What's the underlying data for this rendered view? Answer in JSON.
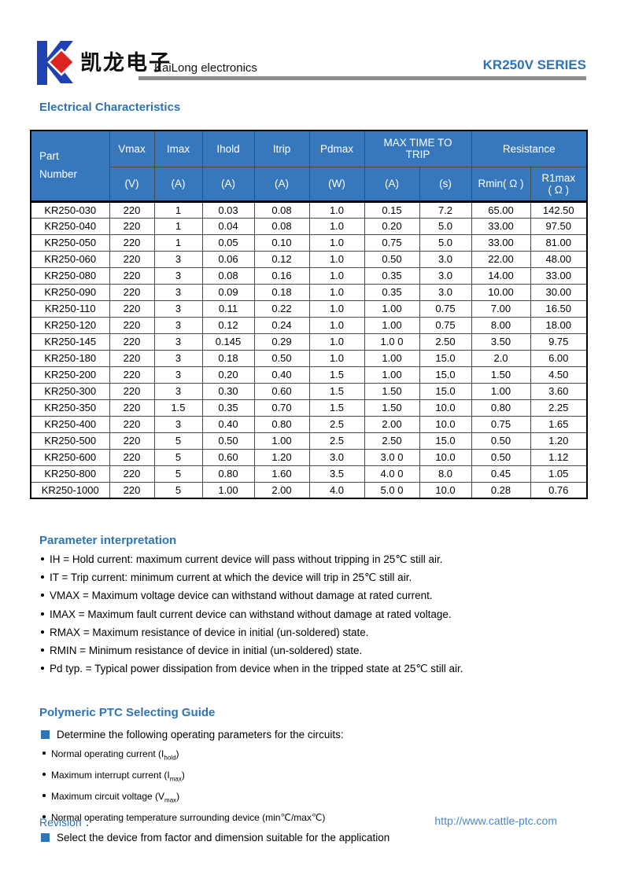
{
  "colors": {
    "accent_blue": "#2e74b5",
    "table_header_blue": "#3778bc",
    "logo_blue": "#2142b2",
    "logo_red": "#dd2423",
    "rule_gray": "#8c8c8c"
  },
  "header": {
    "logo_chinese": "凯龙电子",
    "company": "KaiLong electronics",
    "series": "KR250V SERIES"
  },
  "sections": {
    "electrical": "Electrical Characteristics",
    "parameter": "Parameter interpretation",
    "guide": "Polymeric PTC Selecting Guide"
  },
  "table": {
    "headers": {
      "part_line1": "Part",
      "part_line2": "Number",
      "vmax": "Vmax",
      "imax": "Imax",
      "ihold": "Ihold",
      "itrip": "Itrip",
      "pdmax": "Pdmax",
      "max_time_to_trip": "MAX TIME TO TRIP",
      "resistance": "Resistance",
      "unit_v": "(V)",
      "unit_a1": "(A)",
      "unit_a2": "(A)",
      "unit_a3": "(A)",
      "unit_w": "(W)",
      "unit_a4": "(A)",
      "unit_s": "(s)",
      "rmin": "Rmin( Ω )",
      "r1max_line1": "R1max",
      "r1max_line2": "( Ω )"
    },
    "rows": [
      [
        "KR250-030",
        "220",
        "1",
        "0.03",
        "0.08",
        "1.0",
        "0.15",
        "7.2",
        "65.00",
        "142.50"
      ],
      [
        "KR250-040",
        "220",
        "1",
        "0.04",
        "0.08",
        "1.0",
        "0.20",
        "5.0",
        "33.00",
        "97.50"
      ],
      [
        "KR250-050",
        "220",
        "1",
        "0.05",
        "0.10",
        "1.0",
        "0.75",
        "5.0",
        "33.00",
        "81.00"
      ],
      [
        "KR250-060",
        "220",
        "3",
        "0.06",
        "0.12",
        "1.0",
        "0.50",
        "3.0",
        "22.00",
        "48.00"
      ],
      [
        "KR250-080",
        "220",
        "3",
        "0.08",
        "0.16",
        "1.0",
        "0.35",
        "3.0",
        "14.00",
        "33.00"
      ],
      [
        "KR250-090",
        "220",
        "3",
        "0.09",
        "0.18",
        "1.0",
        "0.35",
        "3.0",
        "10.00",
        "30.00"
      ],
      [
        "KR250-110",
        "220",
        "3",
        "0.11",
        "0.22",
        "1.0",
        "1.00",
        "0.75",
        "7.00",
        "16.50"
      ],
      [
        "KR250-120",
        "220",
        "3",
        "0.12",
        "0.24",
        "1.0",
        "1.00",
        "0.75",
        "8.00",
        "18.00"
      ],
      [
        "KR250-145",
        "220",
        "3",
        "0.145",
        "0.29",
        "1.0",
        "1.0 0",
        "2.50",
        "3.50",
        "9.75"
      ],
      [
        "KR250-180",
        "220",
        "3",
        "0.18",
        "0.50",
        "1.0",
        "1.00",
        "15.0",
        "2.0",
        "6.00"
      ],
      [
        "KR250-200",
        "220",
        "3",
        "0.20",
        "0.40",
        "1.5",
        "1.00",
        "15.0",
        "1.50",
        "4.50"
      ],
      [
        "KR250-300",
        "220",
        "3",
        "0.30",
        "0.60",
        "1.5",
        "1.50",
        "15.0",
        "1.00",
        "3.60"
      ],
      [
        "KR250-350",
        "220",
        "1.5",
        "0.35",
        "0.70",
        "1.5",
        "1.50",
        "10.0",
        "0.80",
        "2.25"
      ],
      [
        "KR250-400",
        "220",
        "3",
        "0.40",
        "0.80",
        "2.5",
        "2.00",
        "10.0",
        "0.75",
        "1.65"
      ],
      [
        "KR250-500",
        "220",
        "5",
        "0.50",
        "1.00",
        "2.5",
        "2.50",
        "15.0",
        "0.50",
        "1.20"
      ],
      [
        "KR250-600",
        "220",
        "5",
        "0.60",
        "1.20",
        "3.0",
        "3.0 0",
        "10.0",
        "0.50",
        "1.12"
      ],
      [
        "KR250-800",
        "220",
        "5",
        "0.80",
        "1.60",
        "3.5",
        "4.0 0",
        "8.0",
        "0.45",
        "1.05"
      ],
      [
        "KR250-1000",
        "220",
        "5",
        "1.00",
        "2.00",
        "4.0",
        "5.0 0",
        "10.0",
        "0.28",
        "0.76"
      ]
    ]
  },
  "parameter_bullets": [
    "IH = Hold current: maximum current device will pass without tripping in 25℃  still air.",
    "IT = Trip current: minimum current at which the device will trip in 25℃  still air.",
    "VMAX = Maximum voltage device can withstand without damage at rated current.",
    "IMAX = Maximum fault current device can withstand without damage at rated voltage.",
    "RMAX = Maximum resistance of device in initial (un-soldered) state.",
    "RMIN = Minimum resistance of device in initial (un-soldered) state.",
    "Pd typ. = Typical power dissipation from device when in the tripped state at 25℃  still air."
  ],
  "guide": {
    "step1": "Determine the following operating parameters for the circuits:",
    "sub_bullets": [
      {
        "pre": "Normal operating current (I",
        "sub": "hold",
        "post": ")"
      },
      {
        "pre": "Maximum interrupt current (I",
        "sub": "max",
        "post": ")"
      },
      {
        "pre": "Maximum circuit voltage (V",
        "sub": "max",
        "post": ")"
      },
      {
        "pre": "Normal operating temperature surrounding device (min℃/max℃)",
        "sub": "",
        "post": ""
      }
    ],
    "step2": "Select the device from factor and dimension suitable for the application"
  },
  "footer": {
    "revision": "Revision ：",
    "url": "http://www.cattle-ptc.com"
  }
}
